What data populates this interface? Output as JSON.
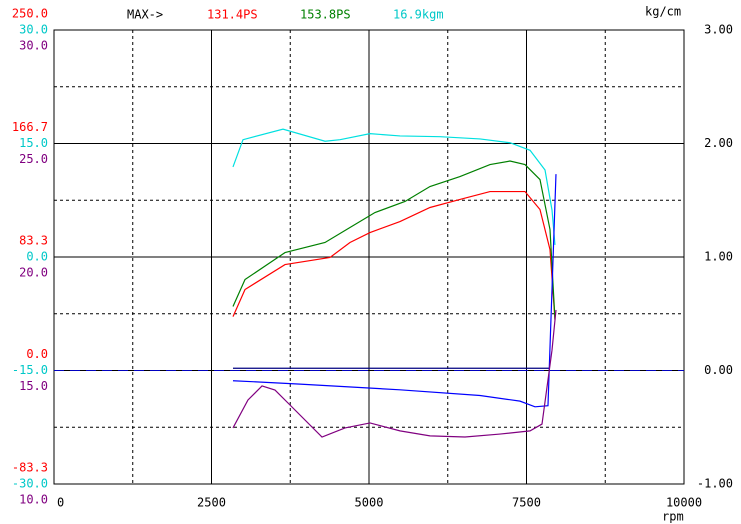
{
  "chart_data": {
    "type": "line",
    "max_prefix": "MAX->",
    "max_labels": [
      {
        "text": "131.4PS",
        "color": "#ff0000"
      },
      {
        "text": "153.8PS",
        "color": "#008000"
      },
      {
        "text": "16.9kgm",
        "color": "#00c8c8"
      }
    ],
    "y2_label": "kg/cm",
    "x_label": "rpm",
    "xlim": [
      0,
      10000
    ],
    "xticks": [
      0,
      2500,
      5000,
      7500,
      10000
    ],
    "xminor": [
      1250,
      3750,
      6250,
      8750
    ],
    "y2lim": [
      -1,
      3
    ],
    "y2ticks": [
      {
        "value": 3,
        "label": "3.00"
      },
      {
        "value": 2,
        "label": "2.00"
      },
      {
        "value": 1,
        "label": "1.00"
      },
      {
        "value": 0,
        "label": "0.00"
      },
      {
        "value": -1,
        "label": "-1.00"
      }
    ],
    "y2minor": [
      2.5,
      1.5,
      0.5,
      -0.5
    ],
    "reference_line": {
      "value": 0,
      "color": "#0000c0"
    },
    "left_axes": [
      {
        "color": "#ff0000",
        "lim": [
          -83.3,
          250
        ],
        "ticks": [
          {
            "value": 250,
            "label": "250.0"
          },
          {
            "value": 166.7,
            "label": "166.7"
          },
          {
            "value": 83.3,
            "label": "83.3"
          },
          {
            "value": 0,
            "label": "0.0"
          },
          {
            "value": -83.3,
            "label": "-83.3"
          }
        ]
      },
      {
        "color": "#00c8c8",
        "lim": [
          -30,
          30
        ],
        "ticks": [
          {
            "value": 30,
            "label": "30.0"
          },
          {
            "value": 15,
            "label": "15.0"
          },
          {
            "value": 0,
            "label": "0.0"
          },
          {
            "value": -15,
            "label": "-15.0"
          },
          {
            "value": -30,
            "label": "-30.0"
          }
        ]
      },
      {
        "color": "#800080",
        "lim": [
          10,
          30
        ],
        "ticks": [
          {
            "value": 30,
            "label": "30.0"
          },
          {
            "value": 25,
            "label": "25.0"
          },
          {
            "value": 20,
            "label": "20.0"
          },
          {
            "value": 15,
            "label": "15.0"
          },
          {
            "value": 10,
            "label": "10.0"
          }
        ]
      }
    ],
    "series": [
      {
        "color": "#ff0000",
        "axis": 0,
        "x": [
          2841,
          3032,
          3667,
          4381,
          4698,
          5016,
          5492,
          5968,
          6444,
          6921,
          7476,
          7714,
          7873,
          7952
        ],
        "values": [
          39.6,
          59.5,
          77.8,
          83.0,
          94.0,
          101.3,
          109.4,
          119.7,
          125.6,
          131.4,
          131.4,
          118.2,
          88.8,
          37.4
        ]
      },
      {
        "color": "#008000",
        "axis": 0,
        "x": [
          2841,
          3032,
          3667,
          4302,
          4698,
          5095,
          5571,
          5968,
          6444,
          6921,
          7238,
          7476,
          7714,
          7873,
          7952
        ],
        "values": [
          47.0,
          66.8,
          86.6,
          94.0,
          105.0,
          116.0,
          124.1,
          135.1,
          142.4,
          151.2,
          153.8,
          151.2,
          140.2,
          103.5,
          37.4
        ]
      },
      {
        "color": "#00e0e0",
        "axis": 1,
        "x": [
          2841,
          3000,
          3635,
          4302,
          4540,
          5016,
          5492,
          6127,
          6762,
          7238,
          7556,
          7794,
          7905,
          7952
        ],
        "values": [
          11.9,
          15.5,
          16.9,
          15.3,
          15.5,
          16.3,
          16.0,
          15.9,
          15.6,
          15.1,
          14.1,
          11.5,
          6.2,
          1.6
        ]
      },
      {
        "color": "#000080",
        "axis": "y2",
        "x": [
          2841,
          7873
        ],
        "values": [
          0.02,
          0.02
        ]
      },
      {
        "color": "#0000ff",
        "axis": "y2",
        "x": [
          2841,
          3905,
          5492,
          6762,
          7397,
          7635,
          7841,
          7968
        ],
        "values": [
          -0.09,
          -0.12,
          -0.17,
          -0.22,
          -0.27,
          -0.32,
          -0.31,
          1.73
        ]
      },
      {
        "color": "#800080",
        "axis": 2,
        "x": [
          2841,
          3079,
          3302,
          3508,
          3746,
          4254,
          4619,
          5016,
          5492,
          5968,
          6524,
          7079,
          7556,
          7746,
          7905,
          7968
        ],
        "values": [
          12.47,
          13.7,
          14.32,
          14.14,
          13.48,
          12.07,
          12.47,
          12.69,
          12.34,
          12.12,
          12.07,
          12.2,
          12.34,
          12.64,
          15.9,
          17.67
        ]
      }
    ]
  }
}
